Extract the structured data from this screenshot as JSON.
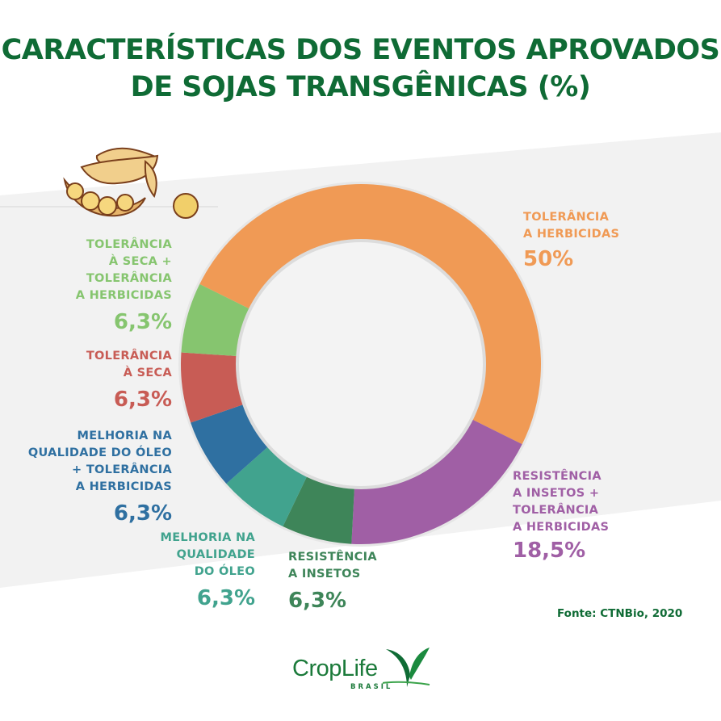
{
  "title": {
    "line1": "CARACTERÍSTICAS DOS EVENTOS APROVADOS",
    "line2": "DE SOJAS TRANSGÊNICAS  (%)",
    "color": "#0f6b35"
  },
  "source": "Fonte: CTNBio, 2020",
  "logo": {
    "name": "CropLife",
    "sub": "BRASIL"
  },
  "chart_data": {
    "type": "pie",
    "subtype": "donut",
    "title": "CARACTERÍSTICAS DOS EVENTOS APROVADOS DE SOJAS TRANSGÊNICAS (%)",
    "unit": "%",
    "categories": [
      "Tolerância a herbicidas",
      "Resistência a insetos + Tolerância a herbicidas",
      "Resistência a insetos",
      "Melhoria na qualidade do óleo",
      "Melhoria na qualidade do óleo + Tolerância a herbicidas",
      "Tolerância à seca",
      "Tolerância à seca + Tolerância a herbicidas"
    ],
    "values": [
      50,
      18.5,
      6.3,
      6.3,
      6.3,
      6.3,
      6.3
    ],
    "colors": [
      "#f09a55",
      "#a05fa5",
      "#3e8559",
      "#41a38e",
      "#2f70a1",
      "#c85c55",
      "#86c56f"
    ],
    "start_angle_deg": 296.4,
    "direction": "clockwise",
    "source": "CTNBio, 2020"
  },
  "labels": [
    {
      "id": "tol-herb",
      "name": "TOLERÂNCIA\nA HERBICIDAS",
      "pct": "50%",
      "color": "#f09a55"
    },
    {
      "id": "res-ins-tol-herb",
      "name": "RESISTÊNCIA\nA INSETOS +\nTOLERÂNCIA\nA HERBICIDAS",
      "pct": "18,5%",
      "color": "#a05fa5"
    },
    {
      "id": "res-ins",
      "name": "RESISTÊNCIA\nA INSETOS",
      "pct": "6,3%",
      "color": "#3e8559"
    },
    {
      "id": "oleo",
      "name": "MELHORIA NA\nQUALIDADE\nDO ÓLEO",
      "pct": "6,3%",
      "color": "#41a38e"
    },
    {
      "id": "oleo-tol-herb",
      "name": "MELHORIA NA\nQUALIDADE DO ÓLEO\n+ TOLERÂNCIA\nA HERBICIDAS",
      "pct": "6,3%",
      "color": "#2f70a1"
    },
    {
      "id": "tol-seca",
      "name": "TOLERÂNCIA\nÀ SECA",
      "pct": "6,3%",
      "color": "#c85c55"
    },
    {
      "id": "tol-seca-tol-herb",
      "name": "TOLERÂNCIA\nÀ SECA +\nTOLERÂNCIA\nA HERBICIDAS",
      "pct": "6,3%",
      "color": "#86c56f"
    }
  ]
}
